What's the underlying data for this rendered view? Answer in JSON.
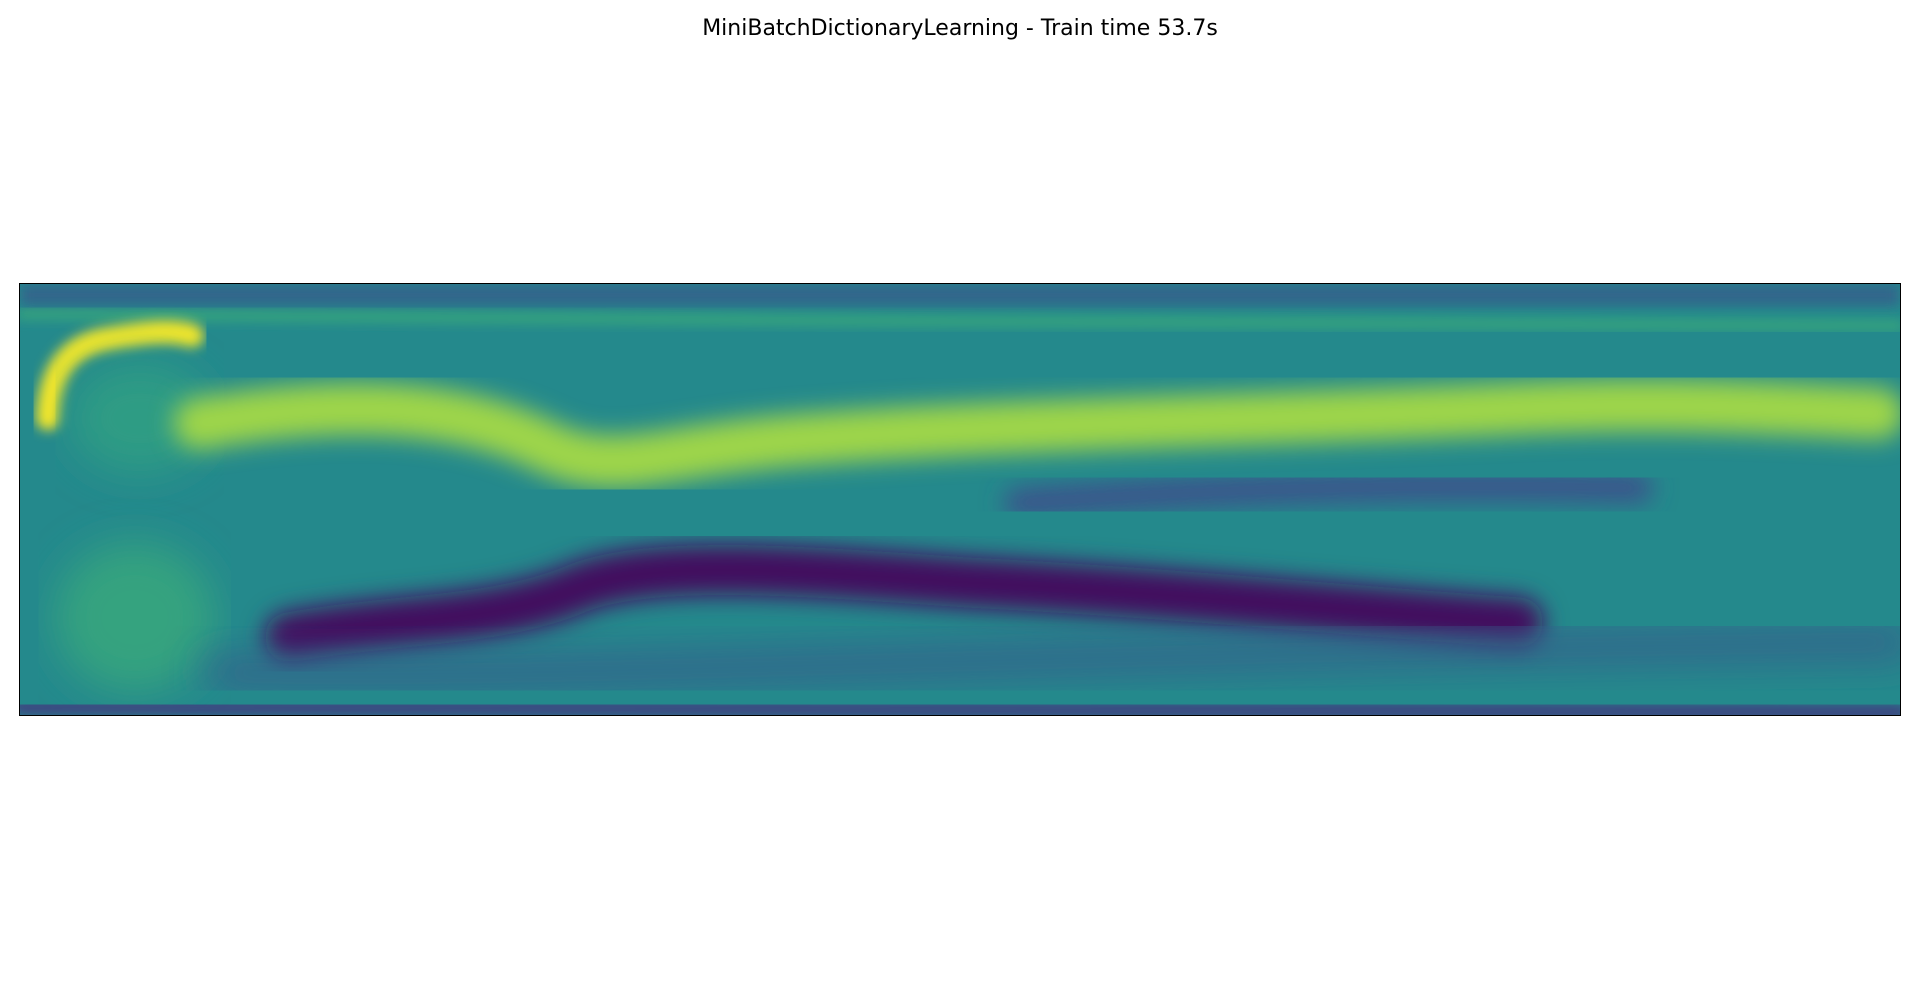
{
  "chart_data": {
    "type": "heatmap",
    "title": "MiniBatchDictionaryLearning - Train time 53.7s",
    "xlabel": "",
    "ylabel": "",
    "grid": false,
    "ticks": false,
    "colormap": "viridis",
    "value_range": [
      0,
      1
    ],
    "colormap_stops": [
      "#440154",
      "#3b528b",
      "#21918c",
      "#5ec962",
      "#fde725"
    ],
    "background_level": 0.47,
    "features": [
      {
        "name": "top-dark-band",
        "level": 0.33
      },
      {
        "name": "upper-light-band",
        "level": 0.6
      },
      {
        "name": "yellow-arc",
        "level": 0.98
      },
      {
        "name": "head-blob-upper",
        "level": 0.55
      },
      {
        "name": "head-blob-lower",
        "level": 0.58
      },
      {
        "name": "bright-streak",
        "level": 0.85
      },
      {
        "name": "right-dark-band",
        "level": 0.25
      },
      {
        "name": "dark-purple-streak",
        "level": 0.05
      },
      {
        "name": "lower-blue-band",
        "level": 0.3
      },
      {
        "name": "bottom-dark-edge",
        "level": 0.2
      }
    ]
  }
}
